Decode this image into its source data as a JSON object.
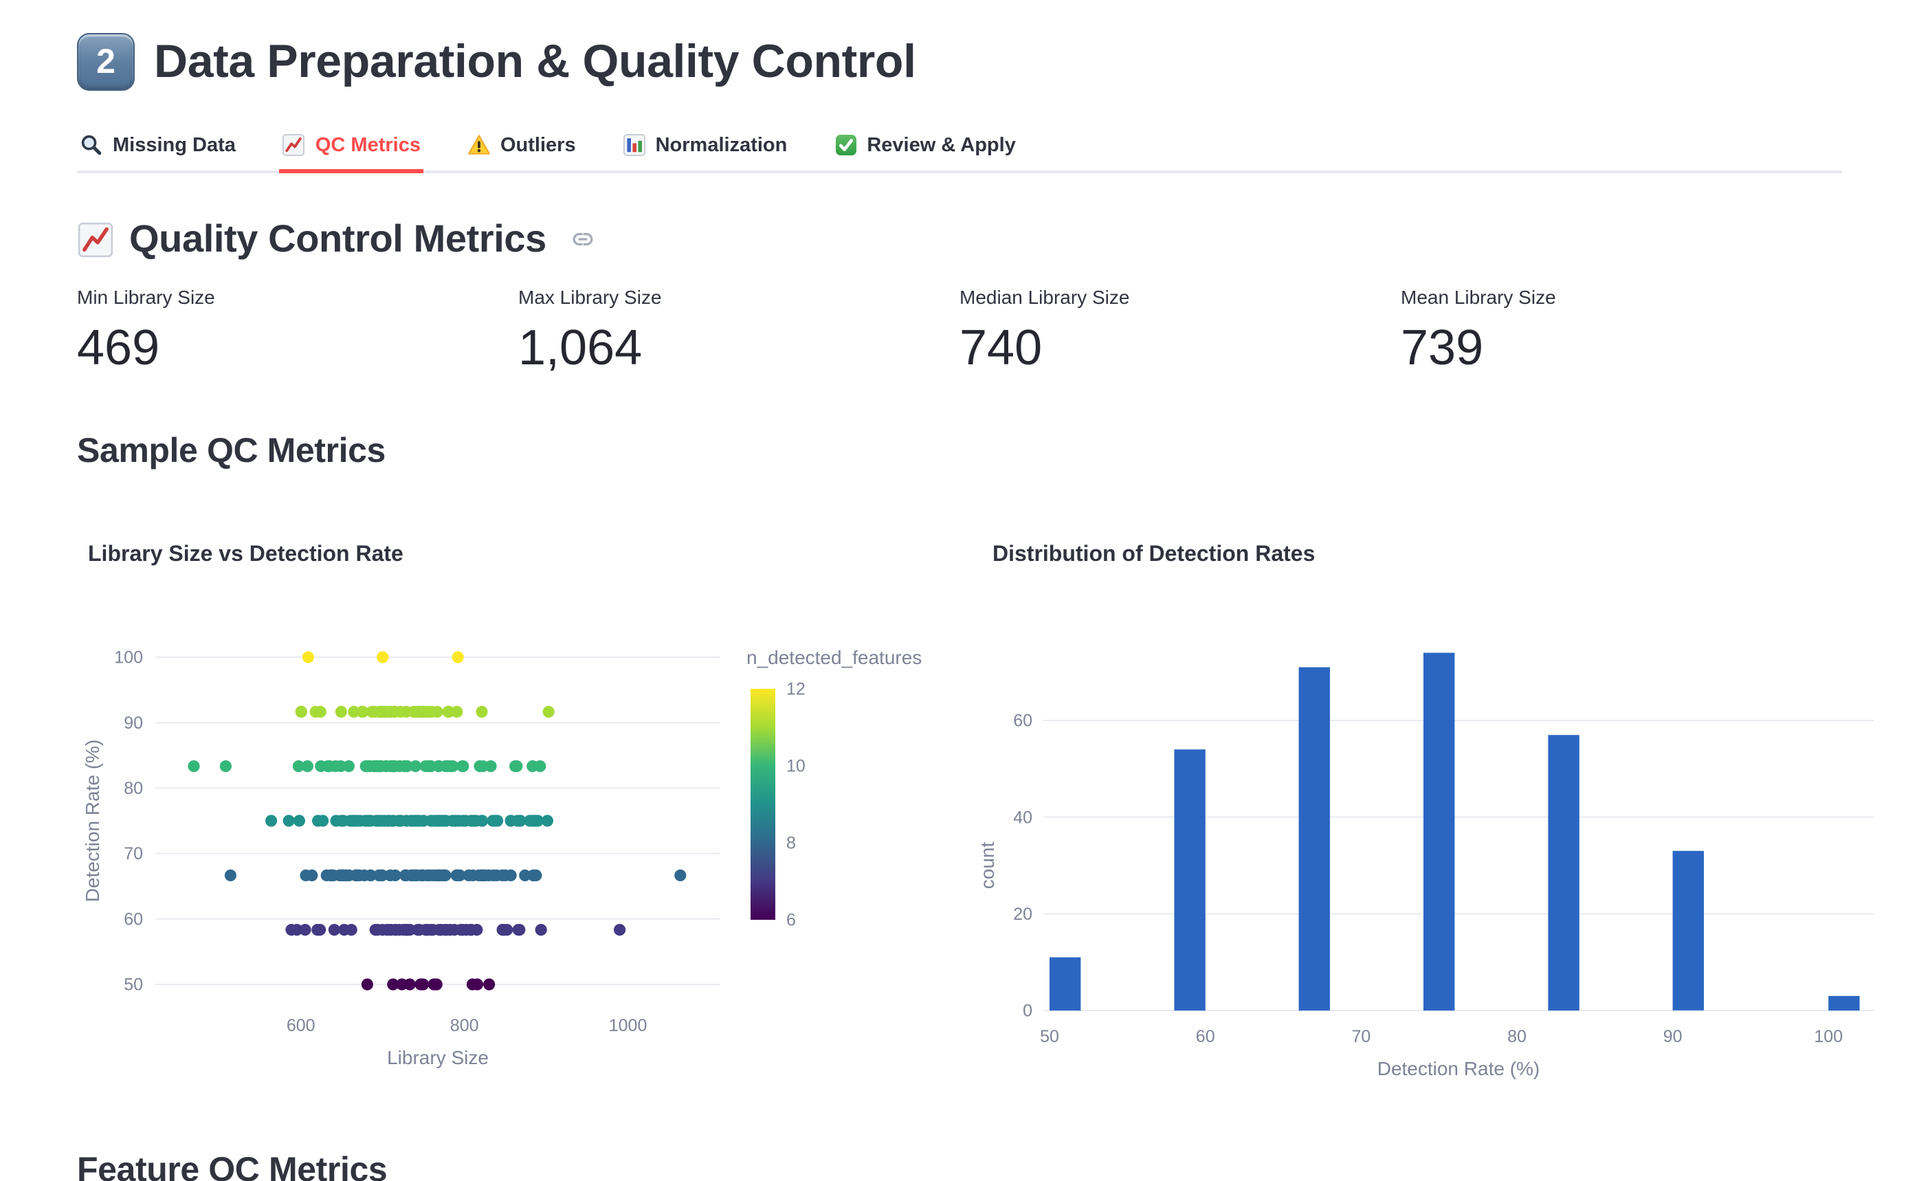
{
  "header": {
    "badge": "2",
    "title": "Data Preparation & Quality Control"
  },
  "tabs": [
    {
      "label": "Missing Data",
      "icon": "magnifying-glass"
    },
    {
      "label": "QC Metrics",
      "icon": "chart-increasing"
    },
    {
      "label": "Outliers",
      "icon": "warning"
    },
    {
      "label": "Normalization",
      "icon": "bar-chart"
    },
    {
      "label": "Review & Apply",
      "icon": "check-mark"
    }
  ],
  "active_tab": "QC Metrics",
  "accent_color": "#ff4b4b",
  "section_header": {
    "icon": "chart-increasing",
    "title": "Quality Control Metrics"
  },
  "metrics": [
    {
      "label": "Min Library Size",
      "value": "469"
    },
    {
      "label": "Max Library Size",
      "value": "1,064"
    },
    {
      "label": "Median Library Size",
      "value": "740"
    },
    {
      "label": "Mean Library Size",
      "value": "739"
    }
  ],
  "subheader": "Sample QC Metrics",
  "footer_subheader": "Feature QC Metrics",
  "chart_data": [
    {
      "type": "scatter",
      "title": "Library Size vs Detection Rate",
      "xlabel": "Library Size",
      "ylabel": "Detection Rate (%)",
      "xticks": [
        600,
        800,
        1000
      ],
      "yticks": [
        50,
        60,
        70,
        80,
        90,
        100
      ],
      "xlim": [
        422,
        1113
      ],
      "ylim": [
        46,
        104
      ],
      "grid": "horizontal",
      "legend_title": "n_detected_features",
      "colorbar": {
        "min": 6,
        "max": 12,
        "ticks": [
          6,
          8,
          10,
          12
        ],
        "palette": "viridis",
        "colors": [
          "#440154",
          "#443983",
          "#31688e",
          "#21918c",
          "#35b779",
          "#a5db36",
          "#fde725"
        ]
      },
      "bands": [
        {
          "n_detected_features": 6,
          "detection_rate": 50.0,
          "count": 11,
          "x_cluster": [
            630,
            880
          ],
          "x_outliers": [],
          "color": "#440154"
        },
        {
          "n_detected_features": 7,
          "detection_rate": 58.33,
          "count": 54,
          "x_cluster": [
            565,
            930
          ],
          "x_outliers": [
            990
          ],
          "color": "#443983"
        },
        {
          "n_detected_features": 8,
          "detection_rate": 66.67,
          "count": 71,
          "x_cluster": [
            548,
            930
          ],
          "x_outliers": [
            514,
            1064
          ],
          "color": "#31688e"
        },
        {
          "n_detected_features": 9,
          "detection_rate": 75.0,
          "count": 74,
          "x_cluster": [
            546,
            940
          ],
          "x_outliers": [],
          "color": "#21918c"
        },
        {
          "n_detected_features": 10,
          "detection_rate": 83.33,
          "count": 57,
          "x_cluster": [
            555,
            905
          ],
          "x_outliers": [
            469,
            508
          ],
          "color": "#35b779"
        },
        {
          "n_detected_features": 11,
          "detection_rate": 91.67,
          "count": 33,
          "x_cluster": [
            565,
            855
          ],
          "x_outliers": [
            903
          ],
          "color": "#a5db36"
        },
        {
          "n_detected_features": 12,
          "detection_rate": 100.0,
          "count": 3,
          "x_points": [
            609,
            700,
            792
          ],
          "x_outliers": [],
          "color": "#fde725"
        }
      ]
    },
    {
      "type": "bar",
      "title": "Distribution of Detection Rates",
      "xlabel": "Detection Rate (%)",
      "ylabel": "count",
      "bar_color": "#2b66c3",
      "grid": "horizontal",
      "xticks": [
        50,
        60,
        70,
        80,
        90,
        100
      ],
      "yticks": [
        0,
        20,
        40,
        60
      ],
      "xlim": [
        49.6,
        102.9
      ],
      "ylim": [
        0,
        78
      ],
      "bins": [
        {
          "x0": 50,
          "x1": 52,
          "count": 11
        },
        {
          "x0": 58,
          "x1": 60,
          "count": 54
        },
        {
          "x0": 66,
          "x1": 68,
          "count": 71
        },
        {
          "x0": 74,
          "x1": 76,
          "count": 74
        },
        {
          "x0": 82,
          "x1": 84,
          "count": 57
        },
        {
          "x0": 90,
          "x1": 92,
          "count": 33
        },
        {
          "x0": 100,
          "x1": 102,
          "count": 3
        }
      ]
    }
  ]
}
